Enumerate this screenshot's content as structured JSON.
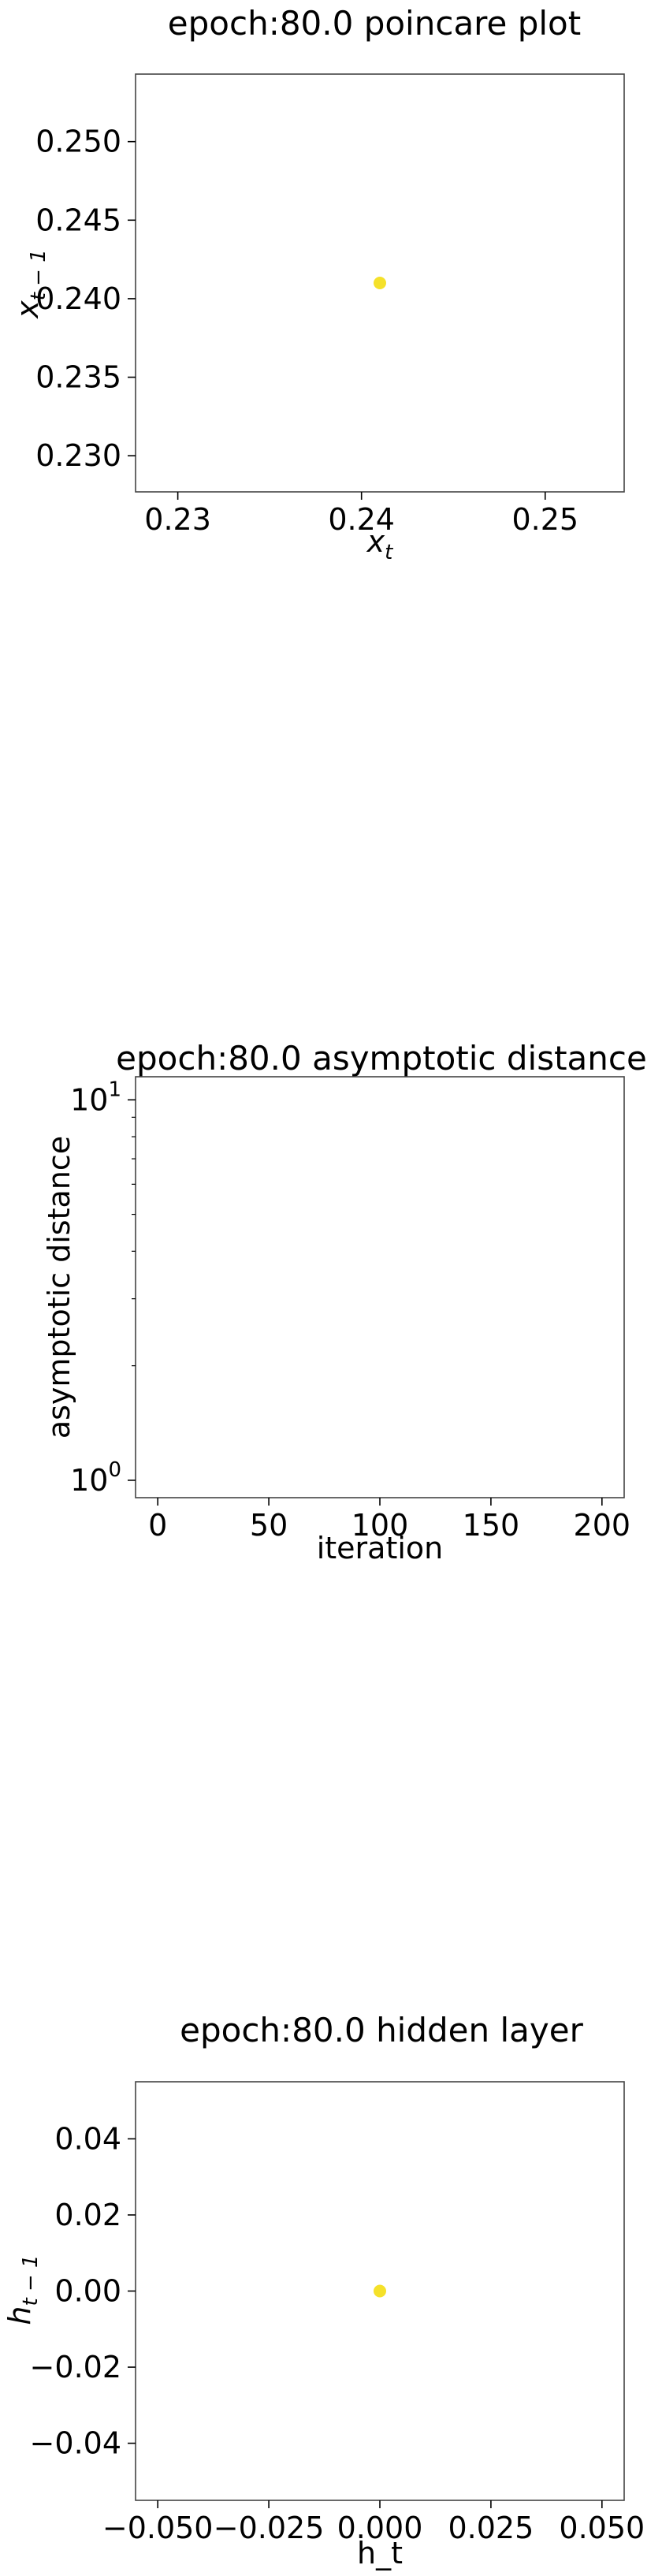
{
  "chart_data": [
    {
      "type": "scatter",
      "title": "epoch:80.0 poincare plot",
      "xlabel_base": "x",
      "xlabel_sub": "t",
      "ylabel_base": "x",
      "ylabel_sub": "t − 1",
      "xlim": [
        0.2277,
        0.2543
      ],
      "ylim": [
        0.2277,
        0.2543
      ],
      "xticks": [
        0.23,
        0.24,
        0.25
      ],
      "xtick_labels": [
        "0.23",
        "0.24",
        "0.25"
      ],
      "yticks": [
        0.23,
        0.235,
        0.24,
        0.245,
        0.25
      ],
      "ytick_labels": [
        "0.230",
        "0.235",
        "0.240",
        "0.245",
        "0.250"
      ],
      "points": [
        {
          "x": 0.241,
          "y": 0.241
        }
      ],
      "point_color": "#f5e12a",
      "grid": false
    },
    {
      "type": "line",
      "title": "epoch:80.0 asymptotic distance",
      "xlabel": "iteration",
      "ylabel": "asymptotic distance",
      "yscale": "log",
      "xlim": [
        -10,
        210
      ],
      "ylim": [
        0.9,
        11.5
      ],
      "xticks": [
        0,
        50,
        100,
        150,
        200
      ],
      "xtick_labels": [
        "0",
        "50",
        "100",
        "150",
        "200"
      ],
      "yticks": [
        1,
        10
      ],
      "ytick_bases": [
        "10",
        "10"
      ],
      "ytick_exps": [
        "0",
        "1"
      ],
      "series": [],
      "grid": false
    },
    {
      "type": "scatter",
      "title": "epoch:80.0 hidden layer",
      "xlabel": "h_t",
      "ylabel_base": "h",
      "ylabel_sub": "t − 1",
      "xlim": [
        -0.055,
        0.055
      ],
      "ylim": [
        -0.055,
        0.055
      ],
      "xticks": [
        -0.05,
        -0.025,
        0,
        0.025,
        0.05
      ],
      "xtick_labels": [
        "−0.050",
        "−0.025",
        "0.000",
        "0.025",
        "0.050"
      ],
      "yticks": [
        -0.04,
        -0.02,
        0,
        0.02,
        0.04
      ],
      "ytick_labels": [
        "−0.04",
        "−0.02",
        "0.00",
        "0.02",
        "0.04"
      ],
      "points": [
        {
          "x": 0.0,
          "y": 0.0
        }
      ],
      "point_color": "#f5e12a",
      "grid": false
    }
  ]
}
